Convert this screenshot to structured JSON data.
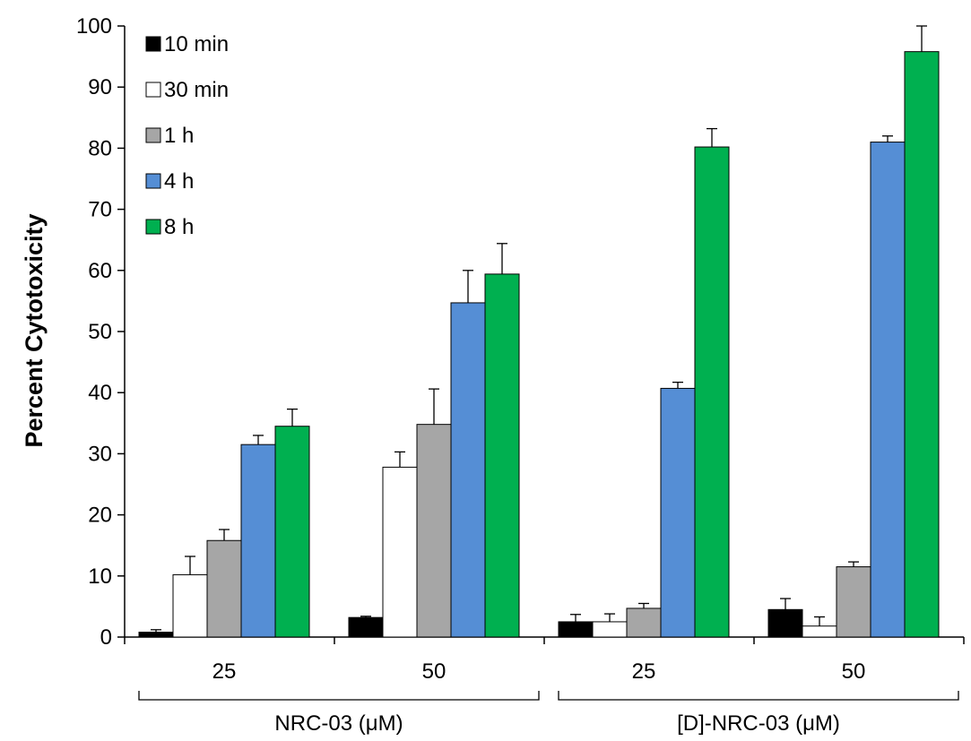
{
  "chart_data": {
    "type": "bar",
    "ylabel": "Percent Cytotoxicity",
    "ylim": [
      0,
      100
    ],
    "yticks": [
      0,
      10,
      20,
      30,
      40,
      50,
      60,
      70,
      80,
      90,
      100
    ],
    "grid": false,
    "legend_placement": "top-left",
    "categories": [
      "25",
      "50",
      "25",
      "50"
    ],
    "groups": [
      {
        "label": "NRC-03 (μM)",
        "categories": [
          0,
          1
        ]
      },
      {
        "label": "[D]-NRC-03 (μM)",
        "categories": [
          2,
          3
        ]
      }
    ],
    "series": [
      {
        "name": "10 min",
        "color": "#000000",
        "values": [
          0.8,
          3.2,
          2.5,
          4.5
        ],
        "errors": [
          0.4,
          0.2,
          1.2,
          1.8
        ]
      },
      {
        "name": "30 min",
        "color": "#ffffff",
        "values": [
          10.2,
          27.8,
          2.5,
          1.8
        ],
        "errors": [
          3.0,
          2.5,
          1.3,
          1.5
        ]
      },
      {
        "name": "1 h",
        "color": "#a6a6a6",
        "values": [
          15.8,
          34.8,
          4.7,
          11.5
        ],
        "errors": [
          1.8,
          5.8,
          0.8,
          0.8
        ]
      },
      {
        "name": "4 h",
        "color": "#558ed5",
        "values": [
          31.5,
          54.7,
          40.7,
          81.0
        ],
        "errors": [
          1.5,
          5.3,
          1.0,
          1.0
        ]
      },
      {
        "name": "8 h",
        "color": "#00b050",
        "values": [
          34.5,
          59.4,
          80.2,
          95.8
        ],
        "errors": [
          2.8,
          5.0,
          3.0,
          4.2
        ]
      }
    ]
  }
}
